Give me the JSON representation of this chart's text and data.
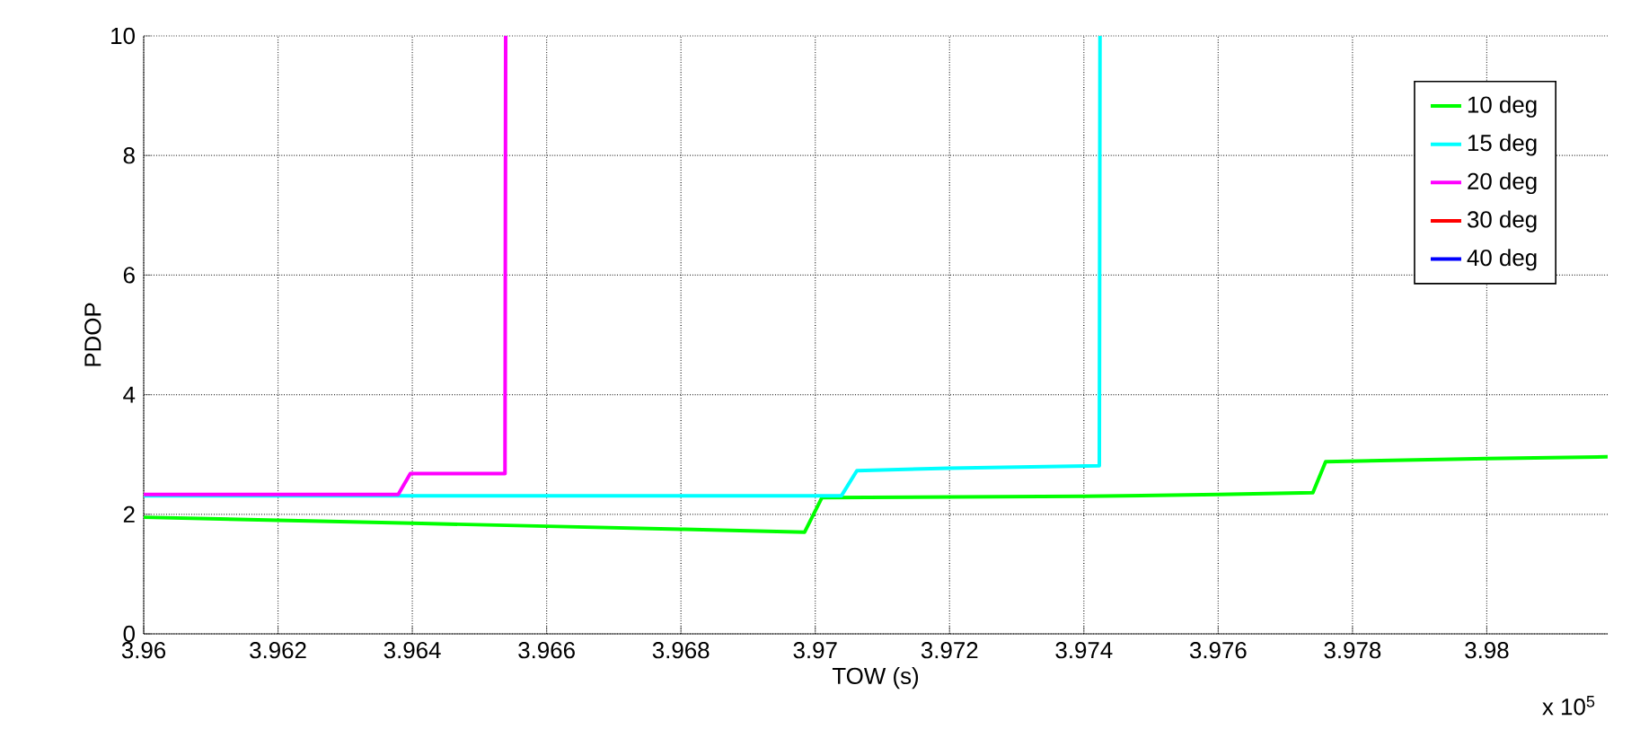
{
  "chart_data": {
    "type": "line",
    "xlabel": "TOW (s)",
    "ylabel": "PDOP",
    "xlim": [
      3.96,
      3.9818
    ],
    "ylim": [
      0,
      10
    ],
    "xticks": [
      3.96,
      3.962,
      3.964,
      3.966,
      3.968,
      3.97,
      3.972,
      3.974,
      3.976,
      3.978,
      3.98
    ],
    "yticks": [
      0,
      2,
      4,
      6,
      8,
      10
    ],
    "grid": true,
    "legend": "top right",
    "line_style": "solid",
    "marker": "none",
    "annotations": [
      "x 10$^{5}$"
    ],
    "series": [
      {
        "name": "10 deg",
        "color": "#00ff00",
        "x": [
          3.96,
          3.962,
          3.964,
          3.966,
          3.968,
          3.96984,
          3.9701,
          3.974,
          3.976,
          3.97741,
          3.9776,
          3.98,
          3.9818
        ],
        "values": [
          1.95,
          1.9,
          1.85,
          1.8,
          1.75,
          1.7,
          2.28,
          2.3,
          2.33,
          2.36,
          2.88,
          2.93,
          2.96
        ]
      },
      {
        "name": "15 deg",
        "color": "#00ffff",
        "x": [
          3.96,
          3.964,
          3.97039,
          3.97062,
          3.972,
          3.97423,
          3.97424
        ],
        "values": [
          2.31,
          2.31,
          2.31,
          2.73,
          2.77,
          2.81,
          10
        ]
      },
      {
        "name": "20 deg",
        "color": "#ff00ff",
        "x": [
          3.96,
          3.96379,
          3.96397,
          3.96538,
          3.96539
        ],
        "values": [
          2.33,
          2.33,
          2.68,
          2.68,
          10
        ]
      },
      {
        "name": "30 deg",
        "color": "#ff0000"
      },
      {
        "name": "40 deg",
        "color": "#0000ff"
      }
    ]
  }
}
